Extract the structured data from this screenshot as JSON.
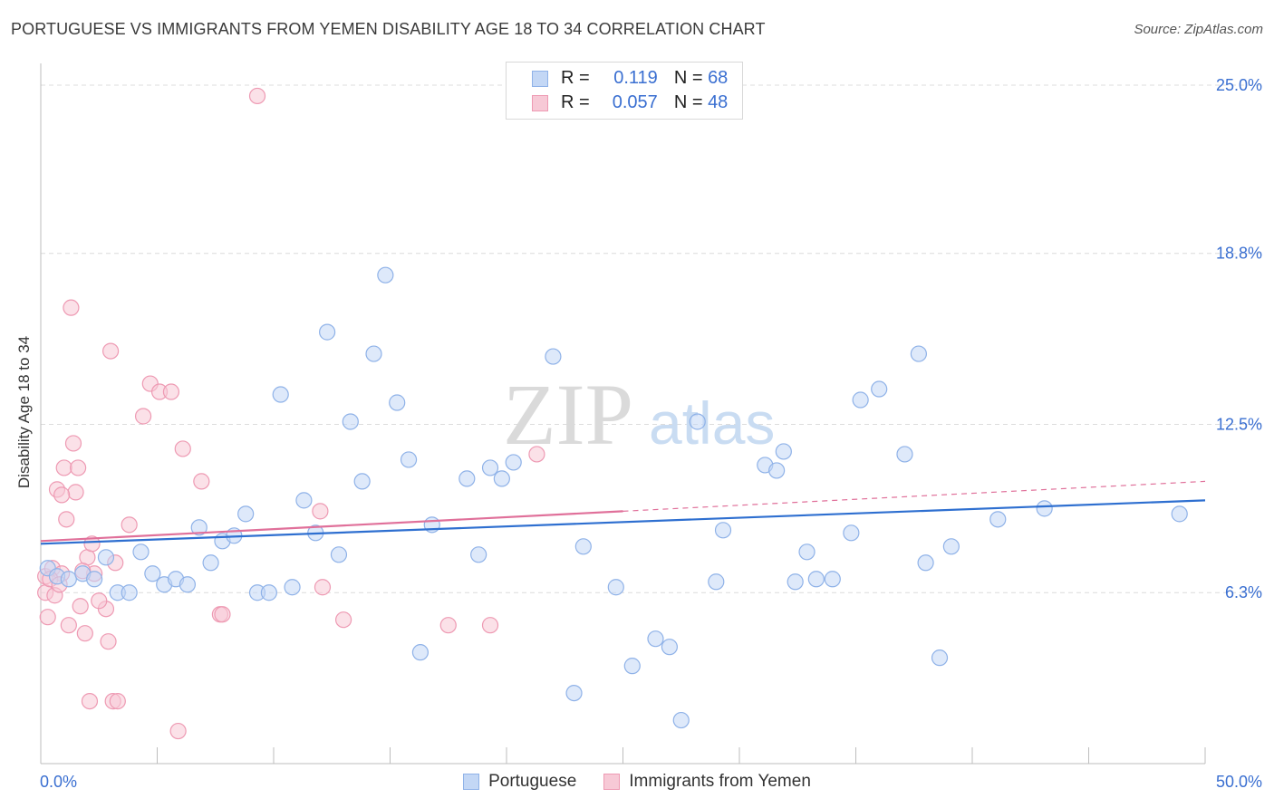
{
  "title": "PORTUGUESE VS IMMIGRANTS FROM YEMEN DISABILITY AGE 18 TO 34 CORRELATION CHART",
  "source": "Source: ZipAtlas.com",
  "watermark": {
    "zip": "ZIP",
    "atlas": "atlas"
  },
  "legend": {
    "rows": [
      {
        "r_label": "R =",
        "r_value": "0.119",
        "n_label": "N =",
        "n_value": "68"
      },
      {
        "r_label": "R =",
        "r_value": "0.057",
        "n_label": "N =",
        "n_value": "48"
      }
    ]
  },
  "colors": {
    "blue_fill": "#c3d7f5",
    "blue_stroke": "#8fb2e8",
    "blue_line": "#2e6fd0",
    "pink_fill": "#f7c9d6",
    "pink_stroke": "#ee9ab3",
    "pink_line": "#e0709a",
    "axis_text": "#3a6fd1"
  },
  "chart_data": {
    "type": "scatter",
    "title": "PORTUGUESE VS IMMIGRANTS FROM YEMEN DISABILITY AGE 18 TO 34 CORRELATION CHART",
    "xlabel": "",
    "ylabel": "Disability Age 18 to 34",
    "xlim": [
      0,
      50
    ],
    "ylim": [
      0,
      25.8
    ],
    "x_tick_labels": [
      "0.0%",
      "50.0%"
    ],
    "y_ticks": [
      {
        "value": 6.3,
        "label": "6.3%"
      },
      {
        "value": 12.5,
        "label": "12.5%"
      },
      {
        "value": 18.8,
        "label": "18.8%"
      },
      {
        "value": 25.0,
        "label": "25.0%"
      }
    ],
    "legend_position": "top-center",
    "series": [
      {
        "name": "Portuguese",
        "r": 0.119,
        "n": 68,
        "trend": {
          "x": [
            0,
            50
          ],
          "y": [
            8.1,
            9.7
          ],
          "dashed_from": null
        },
        "points": [
          [
            0.3,
            7.2
          ],
          [
            0.7,
            6.9
          ],
          [
            1.2,
            6.8
          ],
          [
            1.8,
            7.0
          ],
          [
            2.3,
            6.8
          ],
          [
            2.8,
            7.6
          ],
          [
            3.3,
            6.3
          ],
          [
            3.8,
            6.3
          ],
          [
            4.3,
            7.8
          ],
          [
            4.8,
            7.0
          ],
          [
            5.3,
            6.6
          ],
          [
            5.8,
            6.8
          ],
          [
            6.3,
            6.6
          ],
          [
            6.8,
            8.7
          ],
          [
            7.3,
            7.4
          ],
          [
            7.8,
            8.2
          ],
          [
            8.3,
            8.4
          ],
          [
            8.8,
            9.2
          ],
          [
            9.3,
            6.3
          ],
          [
            9.8,
            6.3
          ],
          [
            10.3,
            13.6
          ],
          [
            10.8,
            6.5
          ],
          [
            11.3,
            9.7
          ],
          [
            11.8,
            8.5
          ],
          [
            12.3,
            15.9
          ],
          [
            12.8,
            7.7
          ],
          [
            13.3,
            12.6
          ],
          [
            13.8,
            10.4
          ],
          [
            14.3,
            15.1
          ],
          [
            14.8,
            18.0
          ],
          [
            15.3,
            13.3
          ],
          [
            15.8,
            11.2
          ],
          [
            16.3,
            4.1
          ],
          [
            16.8,
            8.8
          ],
          [
            18.3,
            10.5
          ],
          [
            18.8,
            7.7
          ],
          [
            19.3,
            10.9
          ],
          [
            19.8,
            10.5
          ],
          [
            20.3,
            11.1
          ],
          [
            22.0,
            15.0
          ],
          [
            22.9,
            2.6
          ],
          [
            23.3,
            8.0
          ],
          [
            24.7,
            6.5
          ],
          [
            25.4,
            3.6
          ],
          [
            26.4,
            4.6
          ],
          [
            27.0,
            4.3
          ],
          [
            27.5,
            1.6
          ],
          [
            28.2,
            12.6
          ],
          [
            29.0,
            6.7
          ],
          [
            29.3,
            8.6
          ],
          [
            31.1,
            11.0
          ],
          [
            31.6,
            10.8
          ],
          [
            31.9,
            11.5
          ],
          [
            32.4,
            6.7
          ],
          [
            32.9,
            7.8
          ],
          [
            33.3,
            6.8
          ],
          [
            34.0,
            6.8
          ],
          [
            34.8,
            8.5
          ],
          [
            35.2,
            13.4
          ],
          [
            36.0,
            13.8
          ],
          [
            37.1,
            11.4
          ],
          [
            37.7,
            15.1
          ],
          [
            38.0,
            7.4
          ],
          [
            38.6,
            3.9
          ],
          [
            39.1,
            8.0
          ],
          [
            41.1,
            9.0
          ],
          [
            43.1,
            9.4
          ],
          [
            48.9,
            9.2
          ]
        ]
      },
      {
        "name": "Immigrants from Yemen",
        "r": 0.057,
        "n": 48,
        "trend": {
          "x": [
            0,
            50
          ],
          "y": [
            8.2,
            10.4
          ],
          "dashed_from": 25
        },
        "points": [
          [
            0.2,
            6.9
          ],
          [
            0.2,
            6.3
          ],
          [
            0.3,
            5.4
          ],
          [
            0.5,
            7.2
          ],
          [
            0.6,
            6.2
          ],
          [
            0.7,
            10.1
          ],
          [
            0.9,
            7.0
          ],
          [
            1.0,
            10.9
          ],
          [
            1.1,
            9.0
          ],
          [
            1.2,
            5.1
          ],
          [
            1.3,
            16.8
          ],
          [
            1.4,
            11.8
          ],
          [
            1.5,
            10.0
          ],
          [
            1.6,
            10.9
          ],
          [
            1.7,
            5.8
          ],
          [
            1.9,
            4.8
          ],
          [
            2.0,
            7.6
          ],
          [
            2.1,
            2.3
          ],
          [
            2.2,
            8.1
          ],
          [
            2.3,
            7.0
          ],
          [
            2.8,
            5.7
          ],
          [
            2.9,
            4.5
          ],
          [
            3.0,
            15.2
          ],
          [
            3.1,
            2.3
          ],
          [
            3.2,
            7.4
          ],
          [
            3.3,
            2.3
          ],
          [
            3.8,
            8.8
          ],
          [
            4.4,
            12.8
          ],
          [
            4.7,
            14.0
          ],
          [
            5.1,
            13.7
          ],
          [
            5.6,
            13.7
          ],
          [
            5.9,
            1.2
          ],
          [
            6.1,
            11.6
          ],
          [
            6.9,
            10.4
          ],
          [
            7.7,
            5.5
          ],
          [
            7.8,
            5.5
          ],
          [
            9.3,
            24.6
          ],
          [
            12.0,
            9.3
          ],
          [
            12.1,
            6.5
          ],
          [
            13.0,
            5.3
          ],
          [
            17.5,
            5.1
          ],
          [
            19.3,
            5.1
          ],
          [
            21.3,
            11.4
          ],
          [
            0.4,
            6.8
          ],
          [
            0.8,
            6.6
          ],
          [
            1.8,
            7.1
          ],
          [
            2.5,
            6.0
          ],
          [
            0.9,
            9.9
          ]
        ]
      }
    ]
  },
  "bottom_legend": [
    "Portuguese",
    "Immigrants from Yemen"
  ]
}
